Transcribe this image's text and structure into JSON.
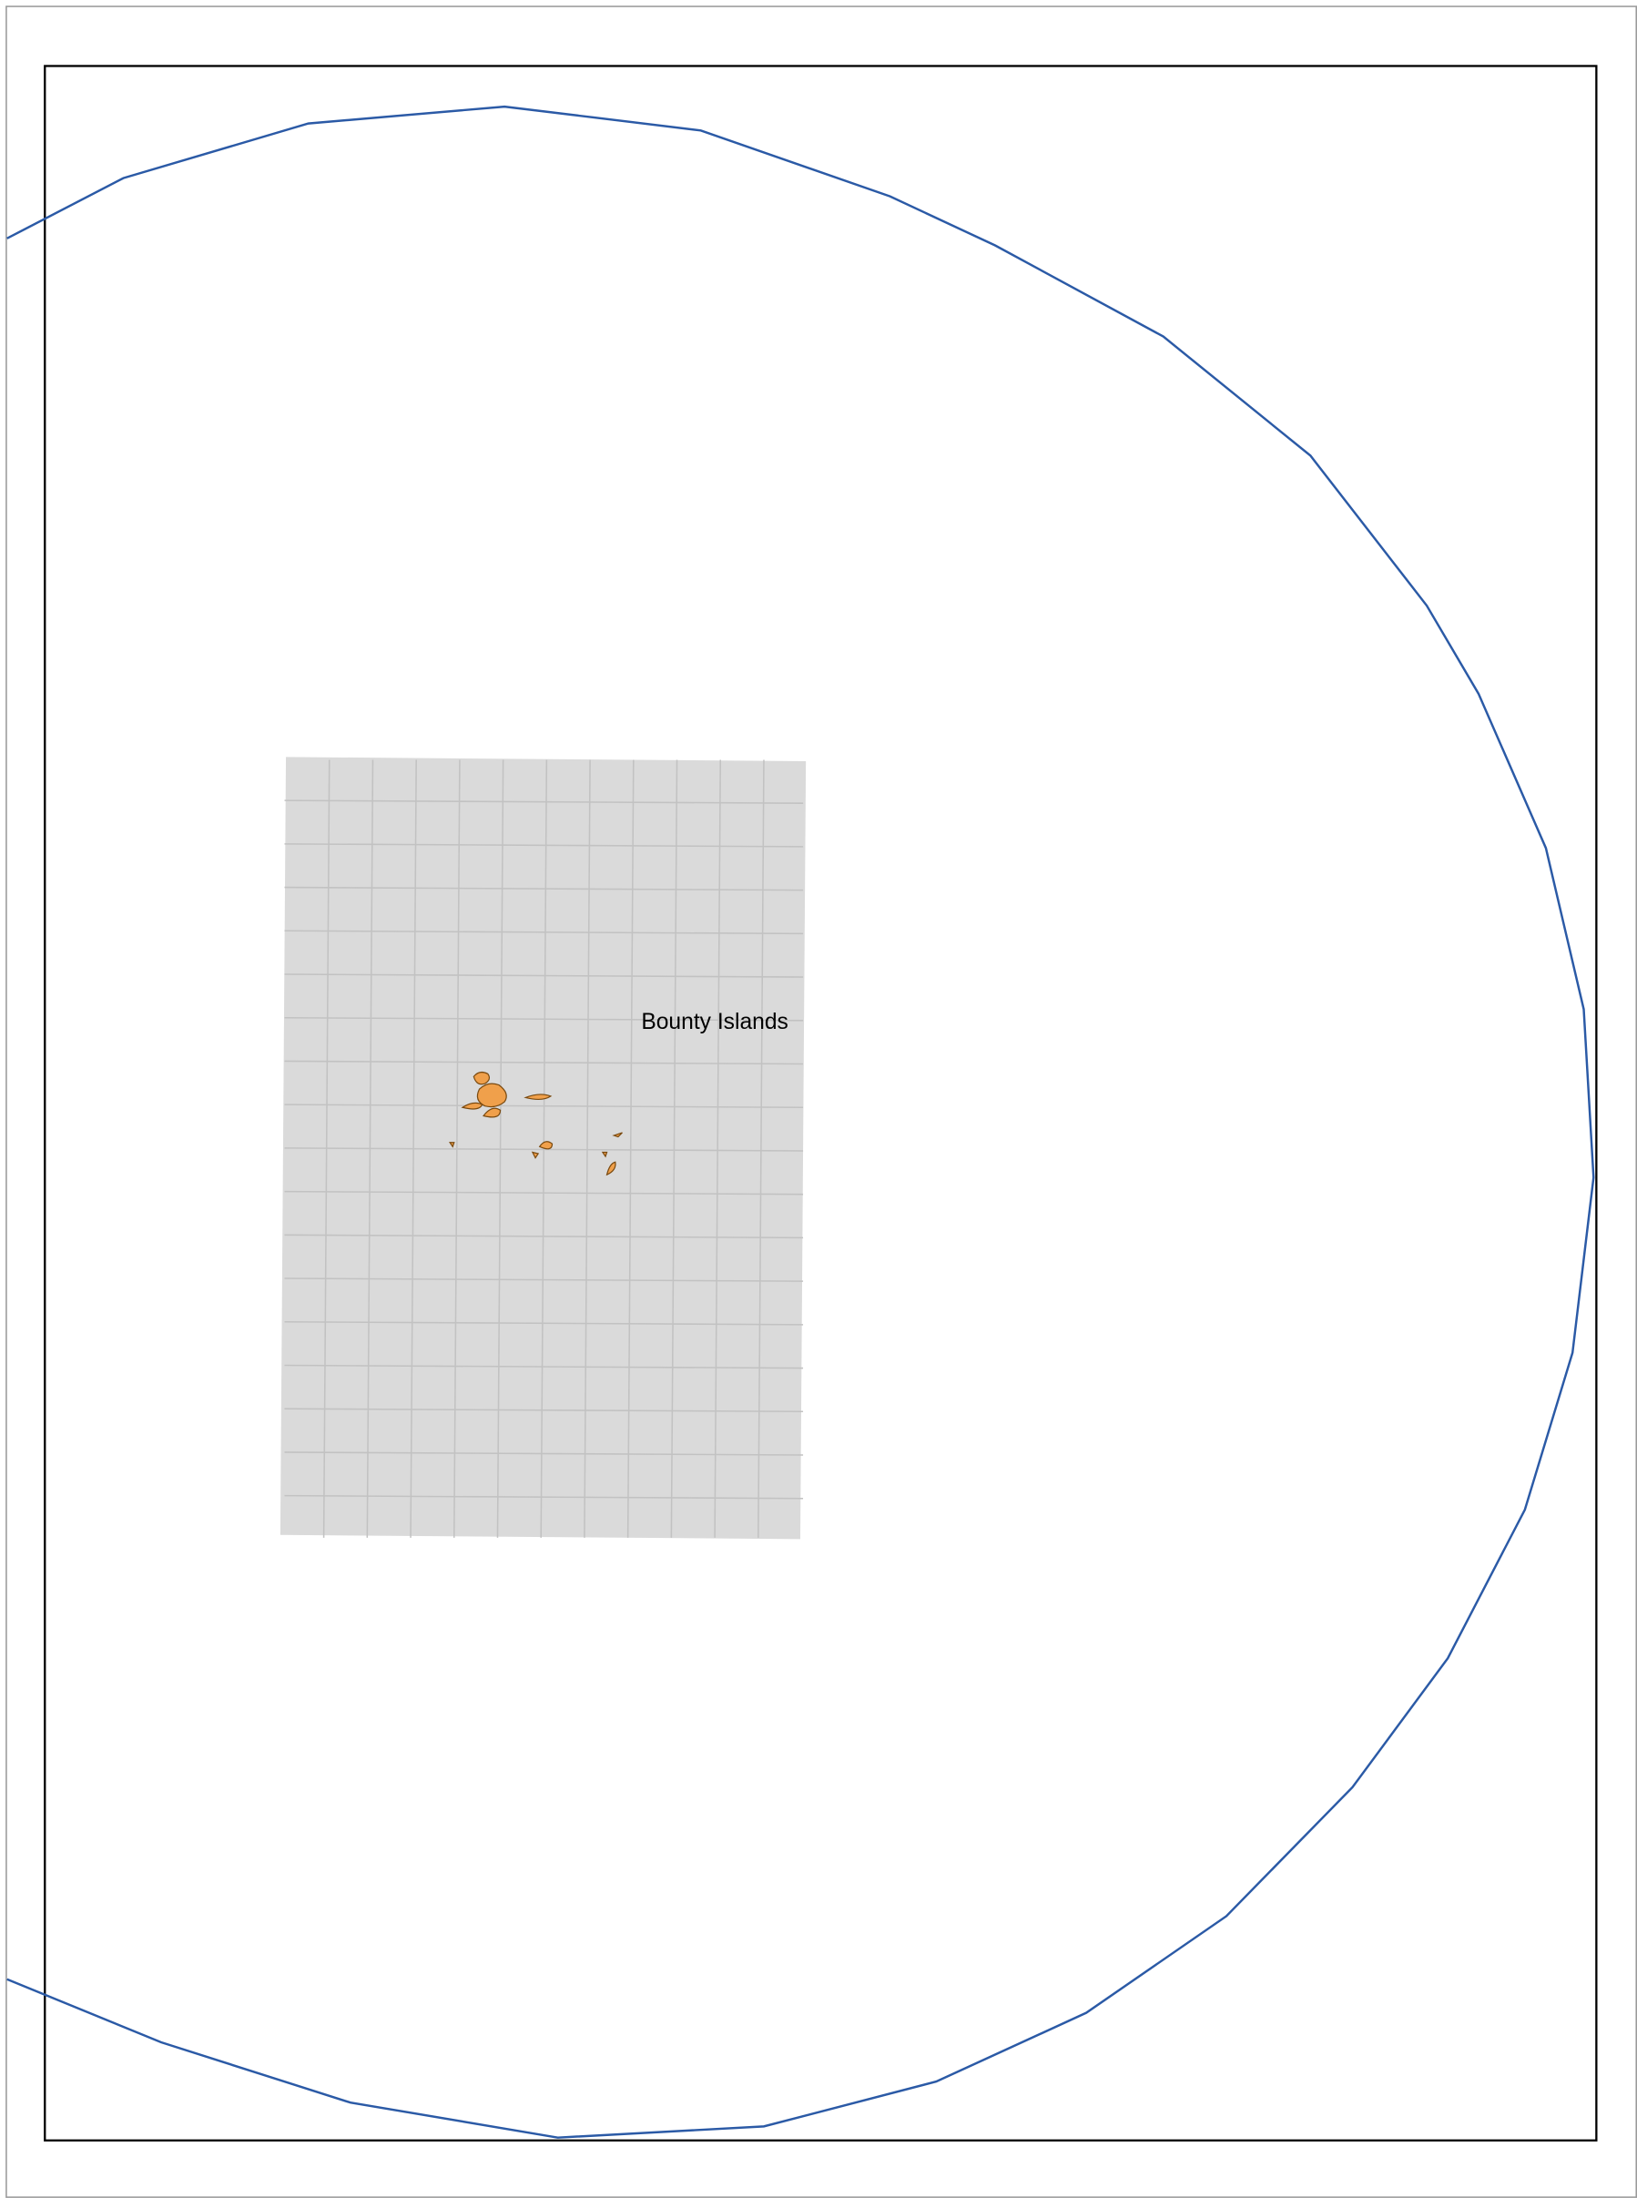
{
  "map": {
    "label": "Bounty Islands"
  }
}
